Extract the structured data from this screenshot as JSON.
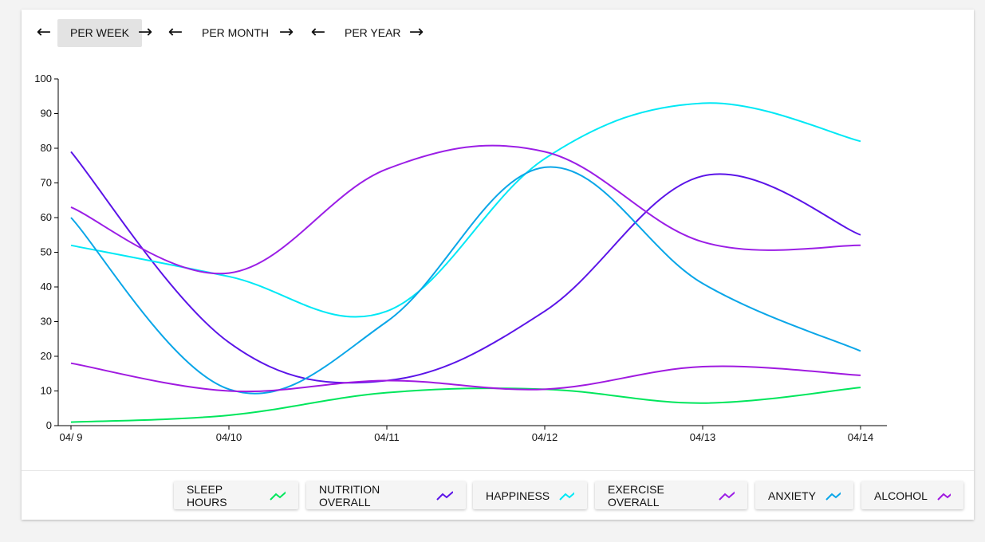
{
  "nav": {
    "periods": [
      {
        "label": "PER WEEK",
        "active": true
      },
      {
        "label": "PER MONTH",
        "active": false
      },
      {
        "label": "PER YEAR",
        "active": false
      }
    ],
    "prev_icon": "arrow-left-icon",
    "next_icon": "arrow-right-icon"
  },
  "chart_data": {
    "type": "line",
    "x": [
      "04/ 9",
      "04/10",
      "04/11",
      "04/12",
      "04/13",
      "04/14"
    ],
    "ylim": [
      0,
      100
    ],
    "yticks": [
      0,
      10,
      20,
      30,
      40,
      50,
      60,
      70,
      80,
      90,
      100
    ],
    "curve": "smooth",
    "series": [
      {
        "name": "SLEEP HOURS",
        "color": "#00e65c",
        "values": [
          1,
          3,
          9.5,
          10.5,
          6.5,
          11
        ]
      },
      {
        "name": "NUTRITION OVERALL",
        "color": "#5b14e8",
        "values": [
          79,
          24,
          13,
          33,
          72,
          55
        ]
      },
      {
        "name": "HAPPINESS",
        "color": "#00e8f5",
        "values": [
          52,
          43,
          33,
          77,
          93,
          82
        ]
      },
      {
        "name": "EXERCISE OVERALL",
        "color": "#9b1ee6",
        "values": [
          63,
          44,
          74,
          79,
          53,
          52
        ]
      },
      {
        "name": "ANXIETY",
        "color": "#0aa6e8",
        "values": [
          60,
          10.5,
          30,
          74.5,
          41,
          21.5
        ]
      },
      {
        "name": "ALCOHOL",
        "color": "#a01ae0",
        "values": [
          18,
          10,
          13,
          10.5,
          17,
          14.5
        ]
      }
    ]
  },
  "legend": {
    "icon": "trend-line-icon"
  }
}
